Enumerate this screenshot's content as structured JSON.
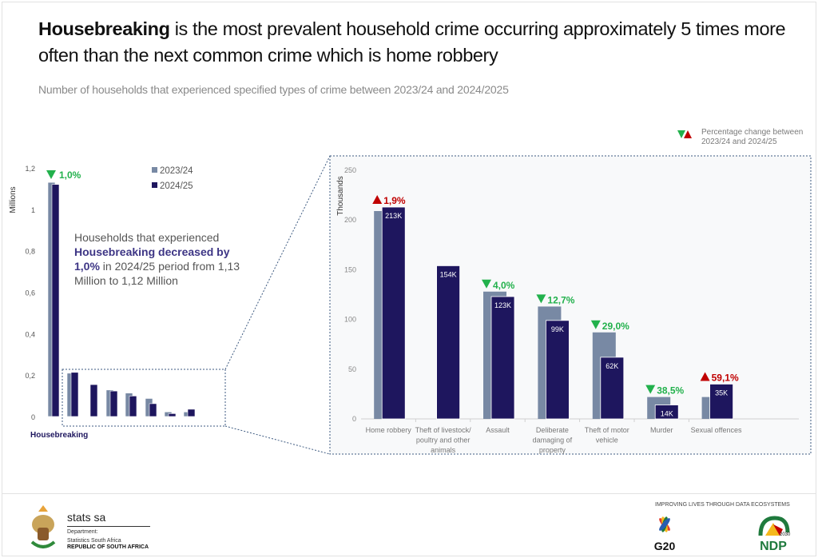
{
  "header": {
    "title_bold": "Housebreaking",
    "title_rest": " is the most prevalent household crime occurring approximately 5 times more often than the next common crime which is home robbery",
    "subtitle": "Number of households that experienced specified types of crime between  2023/24 and 2024/2025"
  },
  "pct_legend": {
    "text_line1": "Percentage change between",
    "text_line2": "2023/24 and 2024/25",
    "down_icon": "triangle-down-green",
    "up_icon": "triangle-up-red"
  },
  "colors": {
    "prior": "#7889a4",
    "current": "#1e165e",
    "down": "#22b14c",
    "up": "#c00000",
    "highlight": "#3d3585"
  },
  "annotation": {
    "line1": "Households that experienced ",
    "highlight": "Housebreaking decreased by 1,0%",
    "line2": " in 2024/25 period from 1,13 Million to 1,12 Million"
  },
  "chart_data": [
    {
      "type": "bar",
      "ylabel": "Millions",
      "ylim": [
        0,
        1.2
      ],
      "yticks": [
        "0",
        "0,2",
        "0,4",
        "0,6",
        "0,8",
        "1",
        "1,2"
      ],
      "ytick_values": [
        0,
        0.2,
        0.4,
        0.6,
        0.8,
        1.0,
        1.2
      ],
      "legend": [
        "2023/24",
        "2024/25"
      ],
      "legend_placement": "top",
      "categories": [
        "Housebreaking",
        "Home robbery",
        "Theft of livestock/ poultry and other animals",
        "Assault",
        "Deliberate damaging of property",
        "Theft of motor vehicle",
        "Murder",
        "Sexual offences"
      ],
      "category_label_shown": "Housebreaking",
      "series": [
        {
          "name": "2023/24",
          "values": [
            1.13,
            0.209,
            null,
            0.128,
            0.113,
            0.087,
            0.022,
            0.022
          ]
        },
        {
          "name": "2024/25",
          "values": [
            1.12,
            0.213,
            0.154,
            0.123,
            0.099,
            0.062,
            0.014,
            0.035
          ]
        }
      ],
      "change_label": {
        "direction": "down",
        "text": "1,0%"
      }
    },
    {
      "type": "bar",
      "ylabel": "Thousands",
      "ylim": [
        0,
        250
      ],
      "yticks": [
        "0",
        "50",
        "100",
        "150",
        "200",
        "250"
      ],
      "ytick_values": [
        0,
        50,
        100,
        150,
        200,
        250
      ],
      "categories": [
        "Home robbery",
        "Theft of livestock/ poultry and other animals",
        "Assault",
        "Deliberate damaging of property",
        "Theft of motor vehicle",
        "Murder",
        "Sexual offences"
      ],
      "category_lines": [
        [
          "Home robbery"
        ],
        [
          "Theft of livestock/",
          "poultry and other",
          "animals"
        ],
        [
          "Assault"
        ],
        [
          "Deliberate",
          "damaging of",
          "property"
        ],
        [
          "Theft of motor",
          "vehicle"
        ],
        [
          "Murder"
        ],
        [
          "Sexual offences"
        ]
      ],
      "series": [
        {
          "name": "2023/24",
          "values": [
            209,
            null,
            128,
            113,
            87,
            22,
            22
          ]
        },
        {
          "name": "2024/25",
          "values": [
            213,
            154,
            123,
            99,
            62,
            14,
            35
          ]
        }
      ],
      "data_labels": [
        "213K",
        "154K",
        "123K",
        "99K",
        "62K",
        "14K",
        "35K"
      ],
      "changes": [
        {
          "direction": "up",
          "text": "1,9%"
        },
        null,
        {
          "direction": "down",
          "text": "4,0%"
        },
        {
          "direction": "down",
          "text": "12,7%"
        },
        {
          "direction": "down",
          "text": "29,0%"
        },
        {
          "direction": "down",
          "text": "38,5%"
        },
        {
          "direction": "up",
          "text": "59,1%"
        }
      ]
    }
  ],
  "footer": {
    "org_name": "stats sa",
    "dept_line1": "Department:",
    "dept_line2": "Statistics South Africa",
    "dept_line3": "REPUBLIC OF SOUTH AFRICA",
    "tagline": "IMPROVING LIVES THROUGH DATA ECOSYSTEMS",
    "logo_g20": "G20",
    "logo_ndp": "NDP",
    "logo_ndp_year": "2030"
  }
}
